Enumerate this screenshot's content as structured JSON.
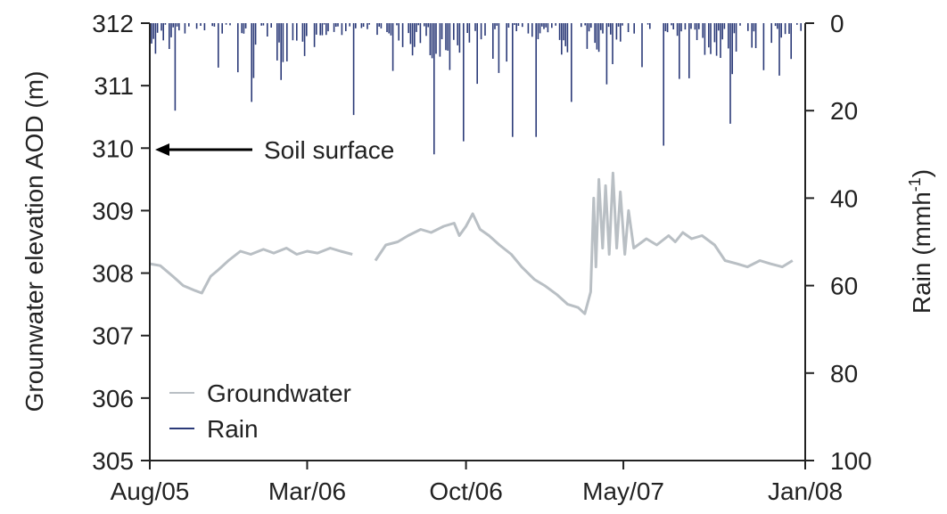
{
  "chart_data": {
    "type": "line",
    "x_ticks": [
      "Aug/05",
      "Mar/06",
      "Oct/06",
      "May/07",
      "Jan/08"
    ],
    "x_tick_dates": [
      "2005-08-01",
      "2006-03-01",
      "2006-10-01",
      "2007-05-01",
      "2008-01-01"
    ],
    "y_left": {
      "label": "Grounwater elevation AOD (m)",
      "ticks": [
        "305",
        "306",
        "307",
        "308",
        "309",
        "310",
        "311",
        "312"
      ],
      "range": [
        305,
        312
      ]
    },
    "y_right": {
      "label": "Rain (mmh",
      "label_sup": "-1",
      "label_close": ")",
      "ticks": [
        "0",
        "20",
        "40",
        "60",
        "80",
        "100"
      ],
      "range": [
        0,
        100
      ],
      "inverted": true
    },
    "annotation": {
      "text": "Soil surface",
      "date": "2005-08-01",
      "value": 310
    },
    "legend": {
      "position": "bottom-left",
      "items": [
        {
          "label": "Groundwater",
          "color": "#b9bfc4"
        },
        {
          "label": "Rain",
          "color": "#2b3a78"
        }
      ]
    },
    "series": [
      {
        "name": "Groundwater",
        "axis": "left",
        "color": "#b9bfc4",
        "segments": [
          [
            [
              "2005-08-01",
              308.15
            ],
            [
              "2005-08-15",
              308.12
            ],
            [
              "2005-09-01",
              307.95
            ],
            [
              "2005-09-15",
              307.8
            ],
            [
              "2005-10-01",
              307.72
            ],
            [
              "2005-10-10",
              307.68
            ],
            [
              "2005-10-22",
              307.95
            ],
            [
              "2005-11-01",
              308.05
            ],
            [
              "2005-11-15",
              308.2
            ],
            [
              "2005-12-01",
              308.35
            ],
            [
              "2005-12-15",
              308.3
            ],
            [
              "2006-01-01",
              308.38
            ],
            [
              "2006-01-15",
              308.32
            ],
            [
              "2006-02-01",
              308.4
            ],
            [
              "2006-02-15",
              308.3
            ],
            [
              "2006-03-01",
              308.35
            ],
            [
              "2006-03-15",
              308.32
            ],
            [
              "2006-04-01",
              308.4
            ],
            [
              "2006-04-15",
              308.35
            ],
            [
              "2006-05-01",
              308.3
            ]
          ],
          [
            [
              "2006-06-01",
              308.2
            ],
            [
              "2006-06-15",
              308.45
            ],
            [
              "2006-07-01",
              308.5
            ],
            [
              "2006-07-15",
              308.6
            ],
            [
              "2006-08-01",
              308.7
            ],
            [
              "2006-08-15",
              308.65
            ],
            [
              "2006-09-01",
              308.75
            ],
            [
              "2006-09-15",
              308.8
            ],
            [
              "2006-09-22",
              308.6
            ],
            [
              "2006-10-01",
              308.75
            ],
            [
              "2006-10-10",
              308.95
            ],
            [
              "2006-10-20",
              308.7
            ],
            [
              "2006-11-01",
              308.6
            ],
            [
              "2006-11-15",
              308.45
            ],
            [
              "2006-12-01",
              308.3
            ],
            [
              "2006-12-15",
              308.1
            ],
            [
              "2007-01-01",
              307.9
            ],
            [
              "2007-01-15",
              307.8
            ],
            [
              "2007-02-01",
              307.65
            ],
            [
              "2007-02-15",
              307.5
            ],
            [
              "2007-03-01",
              307.45
            ],
            [
              "2007-03-10",
              307.35
            ],
            [
              "2007-03-18",
              307.7
            ],
            [
              "2007-03-22",
              309.2
            ],
            [
              "2007-03-25",
              308.1
            ],
            [
              "2007-03-29",
              309.5
            ],
            [
              "2007-04-03",
              308.4
            ],
            [
              "2007-04-07",
              309.4
            ],
            [
              "2007-04-12",
              308.3
            ],
            [
              "2007-04-17",
              309.6
            ],
            [
              "2007-04-22",
              308.4
            ],
            [
              "2007-04-27",
              309.3
            ],
            [
              "2007-05-03",
              308.3
            ],
            [
              "2007-05-08",
              309.0
            ],
            [
              "2007-05-15",
              308.4
            ],
            [
              "2007-06-01",
              308.55
            ],
            [
              "2007-06-15",
              308.45
            ],
            [
              "2007-07-01",
              308.6
            ],
            [
              "2007-07-10",
              308.5
            ],
            [
              "2007-07-20",
              308.65
            ],
            [
              "2007-08-01",
              308.55
            ],
            [
              "2007-08-15",
              308.6
            ],
            [
              "2007-09-01",
              308.45
            ],
            [
              "2007-09-15",
              308.2
            ],
            [
              "2007-10-01",
              308.15
            ],
            [
              "2007-10-15",
              308.1
            ],
            [
              "2007-11-01",
              308.2
            ],
            [
              "2007-11-15",
              308.15
            ],
            [
              "2007-12-01",
              308.1
            ],
            [
              "2007-12-15",
              308.2
            ]
          ]
        ]
      },
      {
        "name": "Rain",
        "axis": "right",
        "color": "#2b3a78"
      }
    ]
  }
}
